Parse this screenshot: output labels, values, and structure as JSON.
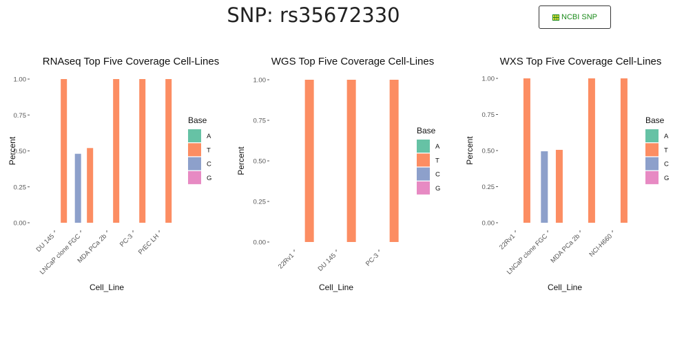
{
  "title": "SNP: rs35672330",
  "button": {
    "label": "NCBI SNP",
    "icon": "table-icon"
  },
  "colors": {
    "A": "#66c2a5",
    "T": "#fc8d62",
    "C": "#8da0cb",
    "G": "#e78ac3"
  },
  "chart_data": [
    {
      "type": "bar",
      "title": "RNAseq Top Five Coverage Cell-Lines",
      "xlabel": "Cell_Line",
      "ylabel": "Percent",
      "ylim": [
        0,
        1
      ],
      "yticks": [
        "0.00",
        "0.25",
        "0.50",
        "0.75",
        "1.00"
      ],
      "legend": {
        "title": "Base",
        "entries": [
          "A",
          "T",
          "C",
          "G"
        ],
        "placement": "right"
      },
      "categories": [
        "DU 145",
        "LNCaP clone FGC",
        "MDA PCa 2b",
        "PC-3",
        "PrEC LH"
      ],
      "series": [
        {
          "name": "A",
          "values": [
            0,
            0,
            0,
            0,
            0
          ]
        },
        {
          "name": "T",
          "values": [
            1.0,
            0.52,
            1.0,
            1.0,
            1.0
          ]
        },
        {
          "name": "C",
          "values": [
            0,
            0.48,
            0,
            0,
            0
          ]
        },
        {
          "name": "G",
          "values": [
            0,
            0,
            0,
            0,
            0
          ]
        }
      ]
    },
    {
      "type": "bar",
      "title": "WGS Top Five Coverage Cell-Lines",
      "xlabel": "Cell_Line",
      "ylabel": "Percent",
      "ylim": [
        0,
        1
      ],
      "yticks": [
        "0.00",
        "0.25",
        "0.50",
        "0.75",
        "1.00"
      ],
      "legend": {
        "title": "Base",
        "entries": [
          "A",
          "T",
          "C",
          "G"
        ],
        "placement": "right"
      },
      "categories": [
        "22Rv1",
        "DU 145",
        "PC-3"
      ],
      "series": [
        {
          "name": "A",
          "values": [
            0,
            0,
            0
          ]
        },
        {
          "name": "T",
          "values": [
            1.0,
            1.0,
            1.0
          ]
        },
        {
          "name": "C",
          "values": [
            0,
            0,
            0
          ]
        },
        {
          "name": "G",
          "values": [
            0,
            0,
            0
          ]
        }
      ]
    },
    {
      "type": "bar",
      "title": "WXS Top Five Coverage Cell-Lines",
      "xlabel": "Cell_Line",
      "ylabel": "Percent",
      "ylim": [
        0,
        1
      ],
      "yticks": [
        "0.00",
        "0.25",
        "0.50",
        "0.75",
        "1.00"
      ],
      "legend": {
        "title": "Base",
        "entries": [
          "A",
          "T",
          "C",
          "G"
        ],
        "placement": "right"
      },
      "categories": [
        "22Rv1",
        "LNCaP clone FGC",
        "MDA PCa 2b",
        "NCI-H660"
      ],
      "series": [
        {
          "name": "A",
          "values": [
            0,
            0,
            0,
            0
          ]
        },
        {
          "name": "T",
          "values": [
            1.0,
            0.505,
            1.0,
            1.0
          ]
        },
        {
          "name": "C",
          "values": [
            0,
            0.495,
            0,
            0
          ]
        },
        {
          "name": "G",
          "values": [
            0,
            0,
            0,
            0
          ]
        }
      ]
    }
  ]
}
